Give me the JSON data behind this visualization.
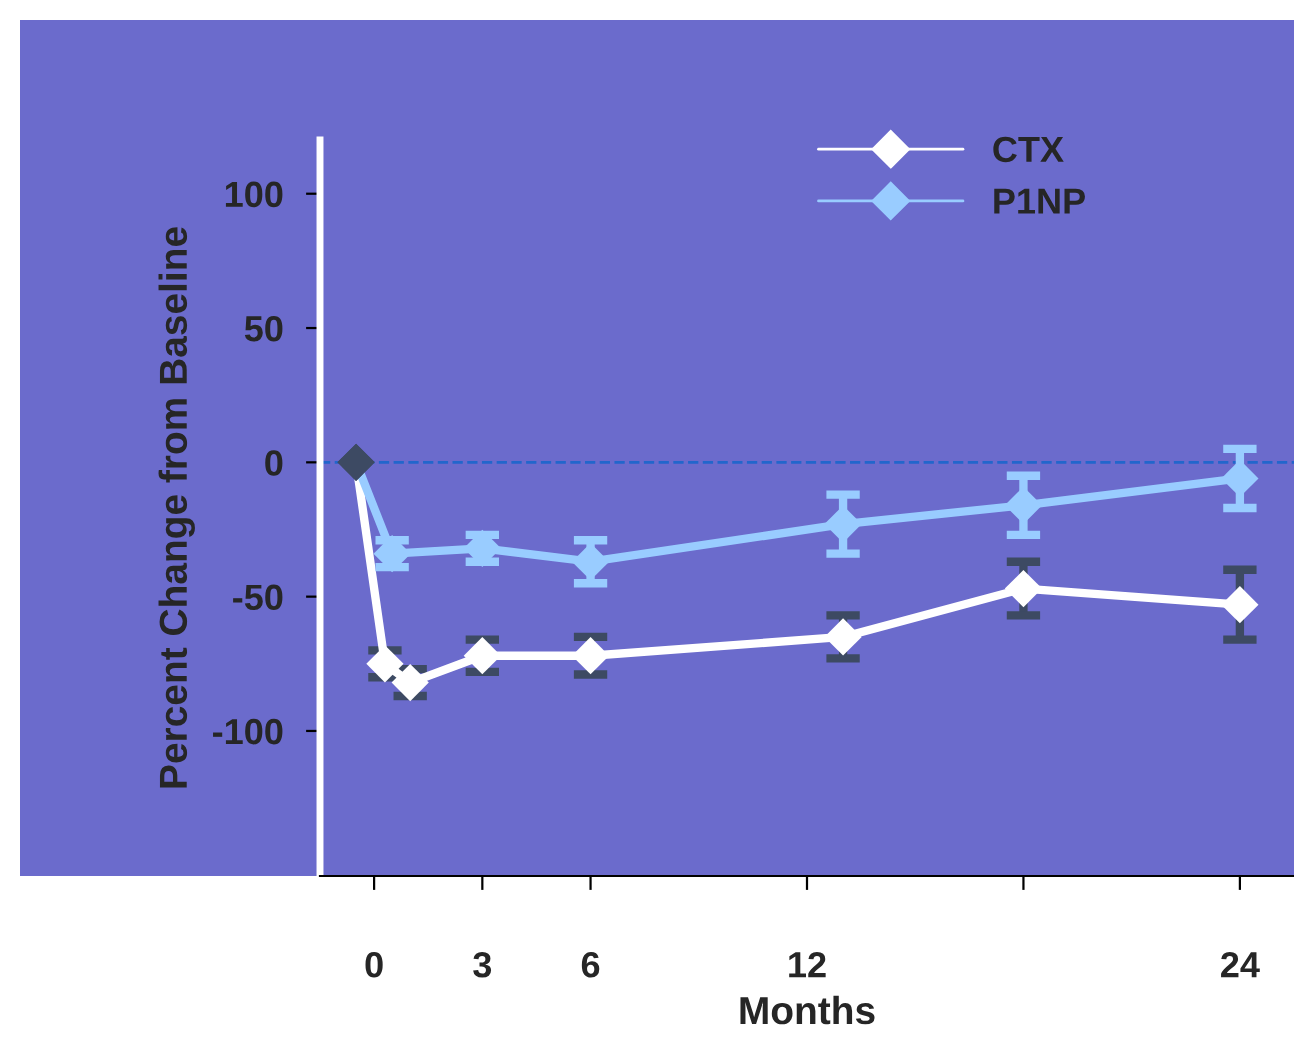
{
  "chart_data": {
    "type": "line",
    "xlabel": "Months",
    "ylabel": "Percent Change from Baseline",
    "xlim": [
      -1.5,
      25.5
    ],
    "xticks": [
      0,
      3,
      6,
      12,
      {
        "value": 18,
        "label": null
      },
      24
    ],
    "ylim": [
      -154,
      120
    ],
    "yticks": [
      -100,
      -50,
      0,
      50,
      100
    ],
    "marker": "diamond",
    "legend": "top right",
    "grid": false,
    "ref_lines": [
      {
        "axis": "y",
        "value": 0,
        "color": "#2266cc",
        "line_style": "dashed"
      }
    ],
    "series": [
      {
        "name": "CTX",
        "color": "#ffffff",
        "x": [
          -0.5,
          0.3,
          1,
          3,
          6,
          13,
          18,
          24
        ],
        "values": [
          0,
          -75,
          -82,
          -72,
          -72,
          -65,
          -47,
          -53
        ],
        "errors": [
          null,
          5,
          5,
          6,
          7,
          8,
          10,
          13
        ],
        "colors": [
          "#3d4a63",
          "#ffffff",
          "#ffffff",
          "#ffffff",
          "#ffffff",
          "#ffffff",
          "#ffffff",
          "#ffffff"
        ]
      },
      {
        "name": "P1NP",
        "color": "#99ccff",
        "x": [
          -0.5,
          0.5,
          3,
          6,
          13,
          18,
          24
        ],
        "values": [
          0,
          -34,
          -32,
          -37,
          -23,
          -16,
          -6
        ],
        "errors": [
          null,
          5,
          5,
          8,
          11,
          11,
          11
        ],
        "colors": [
          "#3d4a63",
          "#99ccff",
          "#99ccff",
          "#99ccff",
          "#99ccff",
          "#99ccff",
          "#99ccff"
        ]
      }
    ]
  }
}
